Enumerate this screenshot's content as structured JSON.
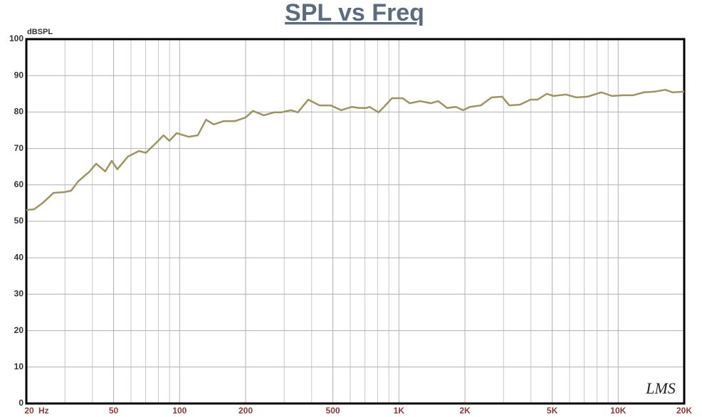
{
  "chart_data": {
    "type": "line",
    "title": "SPL vs Freq",
    "y_label": "dBSPL",
    "x_label": "Hz",
    "watermark": "LMS",
    "log_x": true,
    "grid": true,
    "color": "#9c9563",
    "xlim": [
      20,
      20000
    ],
    "ylim": [
      0,
      100
    ],
    "xticks": [
      20,
      50,
      100,
      200,
      500,
      {
        "value": 1000,
        "label": "1K"
      },
      {
        "value": 2000,
        "label": "2K"
      },
      {
        "value": 5000,
        "label": "5K"
      },
      {
        "value": 10000,
        "label": "10K"
      },
      {
        "value": 20000,
        "label": "20K"
      }
    ],
    "x_minor_ticks": [
      30,
      40,
      60,
      70,
      80,
      90,
      300,
      400,
      600,
      700,
      800,
      900,
      3000,
      4000,
      6000,
      7000,
      8000,
      9000
    ],
    "yticks": [
      0,
      10,
      20,
      30,
      40,
      50,
      60,
      70,
      80,
      90,
      100
    ],
    "x": [
      20,
      21.7,
      23.7,
      26.6,
      29.7,
      32,
      34.5,
      38.6,
      41.6,
      45.8,
      49,
      52,
      58.2,
      65.3,
      70.2,
      78.7,
      84.5,
      89.8,
      96.9,
      110,
      121,
      132,
      143,
      159,
      179,
      200,
      216,
      233,
      242,
      270,
      290,
      322,
      346,
      386,
      435,
      490,
      546,
      610,
      658,
      709,
      735,
      808,
      855,
      930,
      1040,
      1120,
      1250,
      1400,
      1510,
      1660,
      1820,
      1960,
      2110,
      2360,
      2650,
      2960,
      3190,
      3560,
      3980,
      4290,
      4720,
      5080,
      5770,
      6460,
      7230,
      8380,
      9370,
      10480,
      11700,
      13100,
      14660,
      16400,
      17700,
      20000
    ],
    "values": [
      53.1,
      53.3,
      55,
      57.8,
      58,
      58.4,
      61,
      63.5,
      65.8,
      63.7,
      66.6,
      64.3,
      67.8,
      69.3,
      68.8,
      71.7,
      73.6,
      72.1,
      74.2,
      73.2,
      73.6,
      77.9,
      76.6,
      77.5,
      77.5,
      78.5,
      80.3,
      79.5,
      79.1,
      79.9,
      79.9,
      80.5,
      79.9,
      83.4,
      81.8,
      81.8,
      80.5,
      81.4,
      81.1,
      81.1,
      81.4,
      79.9,
      81.4,
      83.8,
      83.8,
      82.4,
      83,
      82.4,
      83,
      81.1,
      81.4,
      80.5,
      81.4,
      81.8,
      84,
      84.2,
      81.8,
      82,
      83.4,
      83.4,
      85,
      84.4,
      84.8,
      84,
      84.2,
      85.4,
      84.4,
      84.6,
      84.6,
      85.4,
      85.6,
      86.1,
      85.4,
      85.6
    ]
  }
}
